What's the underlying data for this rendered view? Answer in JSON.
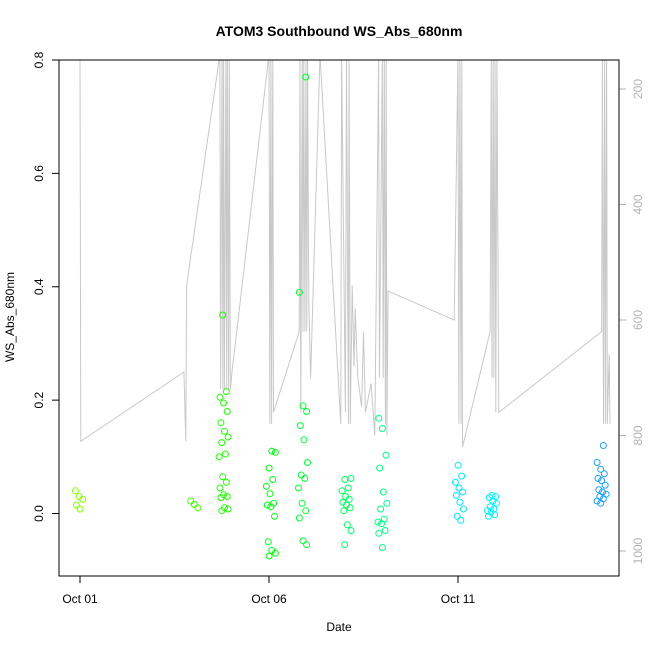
{
  "chart_data": {
    "type": "scatter",
    "title": "ATOM3 Southbound WS_Abs_680nm",
    "xlabel": "Date",
    "ylabel": "WS_Abs_680nm",
    "xlim": [
      "2014-10-01",
      "2014-10-15"
    ],
    "ylim": [
      -0.11,
      0.8
    ],
    "x_ticks": [
      {
        "value": "2014-10-01",
        "label": "Oct 01"
      },
      {
        "value": "2014-10-06",
        "label": "Oct 06"
      },
      {
        "value": "2014-10-11",
        "label": "Oct 11"
      }
    ],
    "y_ticks": [
      0.0,
      0.2,
      0.4,
      0.6,
      0.8
    ],
    "y2_axis": {
      "color": "#b3b3b3",
      "reversed": true,
      "ticks": [
        200,
        400,
        600,
        800,
        1000
      ],
      "lim": [
        1050,
        140
      ]
    },
    "grid": false,
    "legend": "none",
    "point_groups": [
      {
        "date": "2014-10-01",
        "color": "#80ff00",
        "values": [
          0.04,
          0.03,
          0.025,
          0.015,
          0.008
        ]
      },
      {
        "date": "2014-10-04.00",
        "color": "#40ff00",
        "values": [
          0.022,
          0.016,
          0.01
        ]
      },
      {
        "date": "2014-10-04.80",
        "color": "#20ff00",
        "values": [
          0.35,
          0.215,
          0.205,
          0.195,
          0.18,
          0.16,
          0.145,
          0.135,
          0.125,
          0.105,
          0.1,
          0.065,
          0.055,
          0.045,
          0.033,
          0.03,
          0.028,
          0.01,
          0.008,
          0.005
        ]
      },
      {
        "date": "2014-10-06.05",
        "color": "#00ff10",
        "values": [
          0.11,
          0.108,
          0.08,
          0.06,
          0.048,
          0.035,
          0.018,
          0.015,
          0.012,
          -0.005,
          -0.05,
          -0.065,
          -0.07,
          -0.075
        ]
      },
      {
        "date": "2014-10-06.90",
        "color": "#00ff30",
        "values": [
          0.77,
          0.39,
          0.19,
          0.18,
          0.155,
          0.13,
          0.09,
          0.068,
          0.062,
          0.045,
          0.018,
          0.005,
          -0.008,
          -0.048,
          -0.055
        ]
      },
      {
        "date": "2014-10-08.05",
        "color": "#00ff60",
        "values": [
          0.062,
          0.06,
          0.045,
          0.04,
          0.03,
          0.025,
          0.02,
          0.015,
          0.01,
          0.005,
          -0.02,
          -0.03,
          -0.055
        ]
      },
      {
        "date": "2014-10-09.00",
        "color": "#00ff80",
        "values": [
          0.168,
          0.15,
          0.103,
          0.08,
          0.038,
          0.018,
          0.008,
          -0.01,
          -0.015,
          -0.018,
          -0.03,
          -0.035,
          -0.06
        ]
      },
      {
        "date": "2014-10-11.05",
        "color": "#00e8ff",
        "values": [
          0.085,
          0.066,
          0.055,
          0.045,
          0.038,
          0.032,
          0.02,
          0.008,
          -0.005,
          -0.012
        ]
      },
      {
        "date": "2014-10-11.90",
        "color": "#00f0ff",
        "values": [
          0.032,
          0.03,
          0.028,
          0.022,
          0.018,
          0.012,
          0.008,
          0.005,
          0.002,
          -0.002,
          -0.005
        ]
      },
      {
        "date": "2014-10-14.80",
        "color": "#1ea0f0",
        "values": [
          0.12,
          0.09,
          0.078,
          0.07,
          0.062,
          0.058,
          0.05,
          0.042,
          0.038,
          0.034,
          0.03,
          0.026,
          0.022,
          0.018
        ]
      }
    ],
    "depth_line": {
      "color": "#c8c8c8",
      "note": "secondary reversed axis (right); y=depth",
      "points": [
        [
          "2014-10-01.00",
          140
        ],
        [
          "2014-10-01.02",
          810
        ],
        [
          "2014-10-03.75",
          690
        ],
        [
          "2014-10-03.80",
          810
        ],
        [
          "2014-10-03.82",
          540
        ],
        [
          "2014-10-04.70",
          140
        ],
        [
          "2014-10-04.72",
          720
        ],
        [
          "2014-10-04.76",
          140
        ],
        [
          "2014-10-04.78",
          720
        ],
        [
          "2014-10-04.80",
          140
        ],
        [
          "2014-10-04.82",
          720
        ],
        [
          "2014-10-04.86",
          140
        ],
        [
          "2014-10-04.88",
          720
        ],
        [
          "2014-10-04.90",
          140
        ],
        [
          "2014-10-04.93",
          720
        ],
        [
          "2014-10-04.95",
          140
        ],
        [
          "2014-10-04.98",
          720
        ],
        [
          "2014-10-05.02",
          690
        ],
        [
          "2014-10-06.00",
          140
        ],
        [
          "2014-10-06.02",
          780
        ],
        [
          "2014-10-06.05",
          140
        ],
        [
          "2014-10-06.07",
          780
        ],
        [
          "2014-10-06.10",
          140
        ],
        [
          "2014-10-06.12",
          760
        ],
        [
          "2014-10-06.80",
          620
        ],
        [
          "2014-10-06.82",
          140
        ],
        [
          "2014-10-06.84",
          760
        ],
        [
          "2014-10-06.88",
          140
        ],
        [
          "2014-10-06.90",
          620
        ],
        [
          "2014-10-06.92",
          140
        ],
        [
          "2014-10-06.95",
          620
        ],
        [
          "2014-10-06.98",
          140
        ],
        [
          "2014-10-07.00",
          620
        ],
        [
          "2014-10-07.02",
          140
        ],
        [
          "2014-10-07.05",
          560
        ],
        [
          "2014-10-07.10",
          700
        ],
        [
          "2014-10-07.35",
          140
        ],
        [
          "2014-10-07.90",
          780
        ],
        [
          "2014-10-07.92",
          140
        ],
        [
          "2014-10-08.02",
          760
        ],
        [
          "2014-10-08.05",
          140
        ],
        [
          "2014-10-08.10",
          780
        ],
        [
          "2014-10-08.12",
          140
        ],
        [
          "2014-10-08.15",
          780
        ],
        [
          "2014-10-08.20",
          540
        ],
        [
          "2014-10-08.25",
          680
        ],
        [
          "2014-10-08.28",
          580
        ],
        [
          "2014-10-08.35",
          700
        ],
        [
          "2014-10-08.45",
          750
        ],
        [
          "2014-10-08.50",
          620
        ],
        [
          "2014-10-08.55",
          760
        ],
        [
          "2014-10-08.70",
          710
        ],
        [
          "2014-10-08.80",
          800
        ],
        [
          "2014-10-08.90",
          140
        ],
        [
          "2014-10-08.92",
          700
        ],
        [
          "2014-10-09.00",
          140
        ],
        [
          "2014-10-09.02",
          700
        ],
        [
          "2014-10-09.05",
          140
        ],
        [
          "2014-10-09.08",
          780
        ],
        [
          "2014-10-09.10",
          140
        ],
        [
          "2014-10-09.12",
          800
        ],
        [
          "2014-10-09.15",
          550
        ],
        [
          "2014-10-10.90",
          600
        ],
        [
          "2014-10-11.00",
          140
        ],
        [
          "2014-10-11.02",
          780
        ],
        [
          "2014-10-11.05",
          140
        ],
        [
          "2014-10-11.08",
          780
        ],
        [
          "2014-10-11.10",
          140
        ],
        [
          "2014-10-11.12",
          820
        ],
        [
          "2014-10-11.85",
          620
        ],
        [
          "2014-10-11.88",
          140
        ],
        [
          "2014-10-11.90",
          700
        ],
        [
          "2014-10-11.93",
          140
        ],
        [
          "2014-10-11.95",
          700
        ],
        [
          "2014-10-11.98",
          140
        ],
        [
          "2014-10-12.00",
          760
        ],
        [
          "2014-10-12.03",
          140
        ],
        [
          "2014-10-12.08",
          760
        ],
        [
          "2014-10-14.80",
          620
        ],
        [
          "2014-10-14.82",
          140
        ],
        [
          "2014-10-14.85",
          780
        ],
        [
          "2014-10-14.88",
          140
        ],
        [
          "2014-10-14.90",
          780
        ],
        [
          "2014-10-14.93",
          140
        ],
        [
          "2014-10-14.95",
          780
        ],
        [
          "2014-10-15.00",
          660
        ],
        [
          "2014-10-15.02",
          780
        ]
      ]
    }
  }
}
